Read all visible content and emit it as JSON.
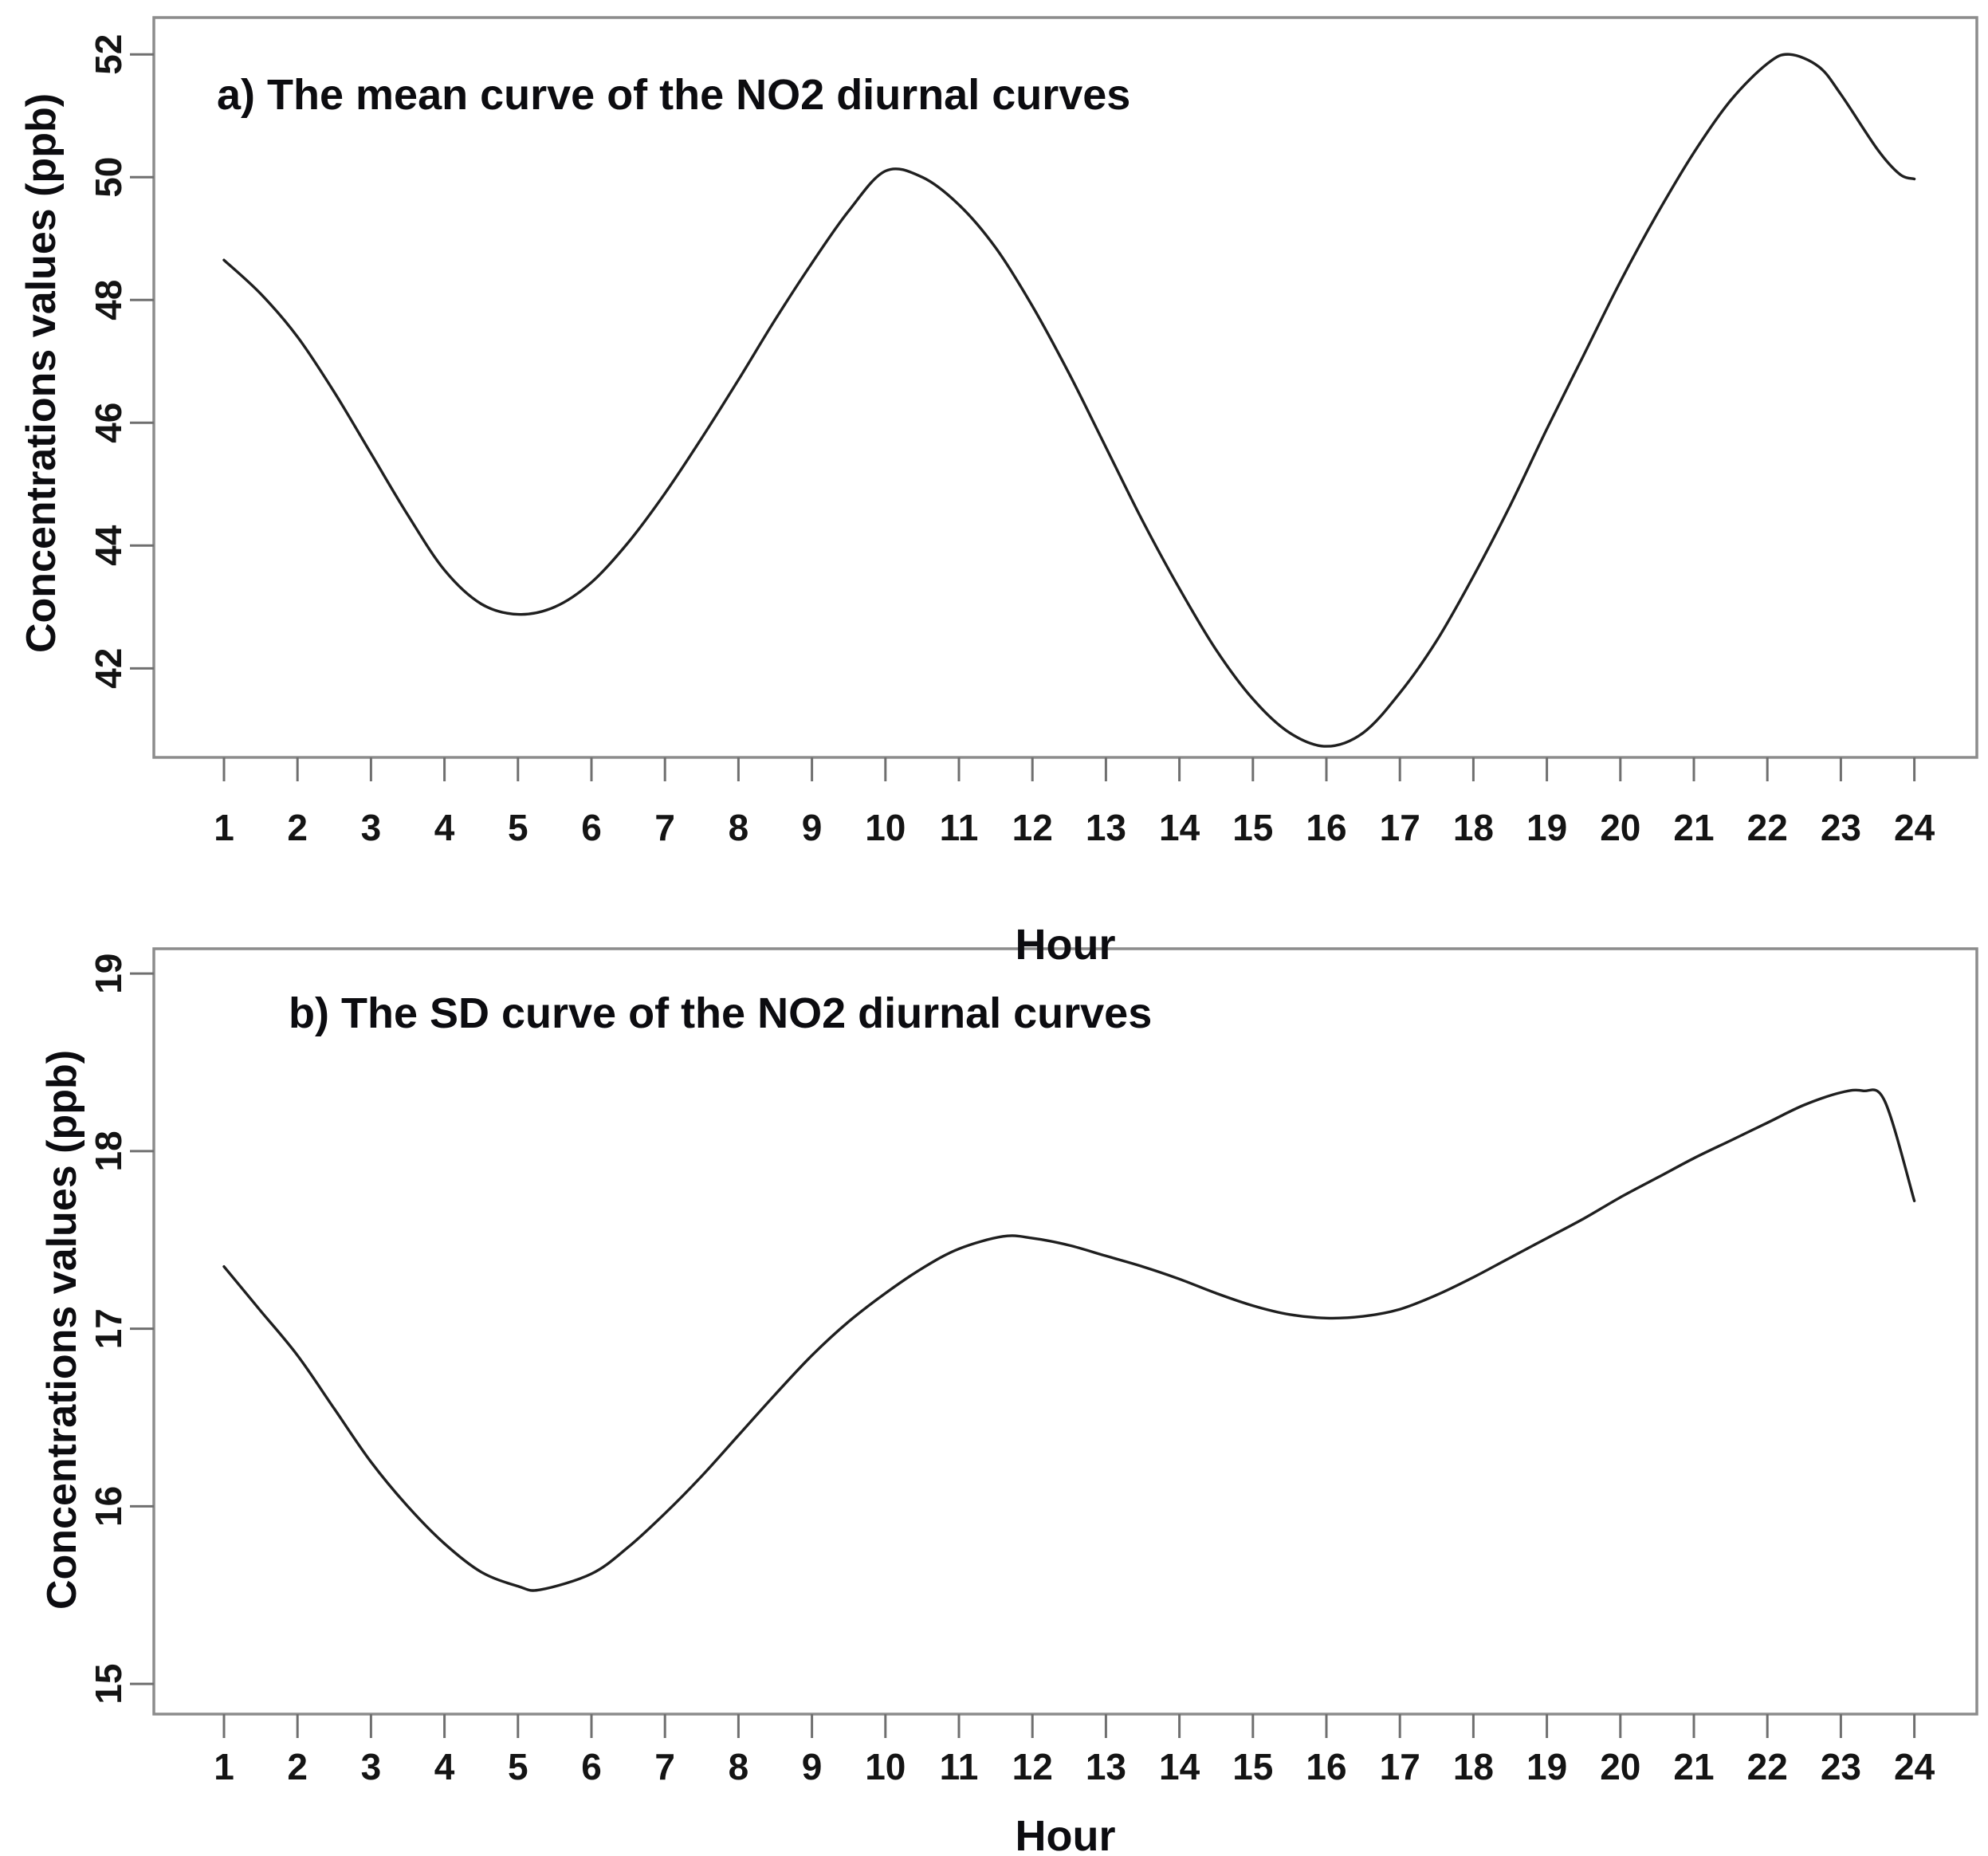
{
  "figure": {
    "background": "#ffffff",
    "frame_color": "#8c8c8c",
    "tick_color": "#6f6f6f",
    "text_color": "#141414",
    "curve_color": "#1f1f1f"
  },
  "chart_data": [
    {
      "type": "line",
      "panel": "a",
      "title": "a) The mean curve of the NO2 diurnal curves",
      "xlabel": "Hour",
      "ylabel": "Concentrations values (ppb)",
      "x_ticks": [
        1,
        2,
        3,
        4,
        5,
        6,
        7,
        8,
        9,
        10,
        11,
        12,
        13,
        14,
        15,
        16,
        17,
        18,
        19,
        20,
        21,
        22,
        23,
        24
      ],
      "y_ticks": [
        42,
        44,
        46,
        48,
        50,
        52
      ],
      "ylim": [
        40.55,
        52.6
      ],
      "xlim": [
        1,
        24
      ],
      "grid": false,
      "legend": null,
      "series": [
        {
          "name": "mean NO2 diurnal curve",
          "x": [
            1,
            1.5,
            2,
            2.5,
            3,
            3.5,
            4,
            4.5,
            5,
            5.5,
            6,
            6.5,
            7,
            7.5,
            8,
            8.5,
            9,
            9.5,
            10,
            10.5,
            11,
            11.5,
            12,
            12.5,
            13,
            13.5,
            14,
            14.5,
            15,
            15.5,
            16,
            16.5,
            17,
            17.5,
            18,
            18.5,
            19,
            19.5,
            20,
            20.5,
            21,
            21.5,
            22,
            22.3,
            22.7,
            23,
            23.5,
            23.8,
            24
          ],
          "y": [
            48.65,
            48.1,
            47.4,
            46.5,
            45.5,
            44.5,
            43.6,
            43.05,
            42.88,
            43.0,
            43.4,
            44.05,
            44.85,
            45.75,
            46.7,
            47.68,
            48.6,
            49.45,
            50.1,
            50.0,
            49.55,
            48.85,
            47.9,
            46.8,
            45.6,
            44.4,
            43.3,
            42.3,
            41.5,
            40.95,
            40.73,
            40.95,
            41.6,
            42.45,
            43.5,
            44.65,
            45.9,
            47.1,
            48.3,
            49.4,
            50.4,
            51.25,
            51.85,
            52.0,
            51.8,
            51.35,
            50.45,
            50.05,
            49.97
          ]
        }
      ],
      "key_points": {
        "start_h1": 48.65,
        "morning_min_h5": 42.9,
        "morning_peak_h10": 50.1,
        "afternoon_min_h16": 40.7,
        "evening_peak_h22": 52.0,
        "end_h24": 50.0
      }
    },
    {
      "type": "line",
      "panel": "b",
      "title": "b) The SD curve of the NO2 diurnal curves",
      "xlabel": "Hour",
      "ylabel": "Concentrations values (ppb)",
      "x_ticks": [
        1,
        2,
        3,
        4,
        5,
        6,
        7,
        8,
        9,
        10,
        11,
        12,
        13,
        14,
        15,
        16,
        17,
        18,
        19,
        20,
        21,
        22,
        23,
        24
      ],
      "y_ticks": [
        15,
        16,
        17,
        18,
        19
      ],
      "ylim": [
        14.83,
        19.14
      ],
      "xlim": [
        1,
        24
      ],
      "grid": false,
      "legend": null,
      "series": [
        {
          "name": "SD NO2 diurnal curve",
          "x": [
            1,
            1.5,
            2,
            2.5,
            3,
            3.5,
            4,
            4.5,
            5,
            5.3,
            6,
            6.5,
            7,
            7.5,
            8,
            8.5,
            9,
            9.5,
            10,
            10.5,
            11,
            11.6,
            12,
            12.5,
            13,
            13.5,
            14,
            14.5,
            15,
            15.5,
            16,
            16.5,
            17,
            17.5,
            18,
            18.5,
            19,
            19.5,
            20,
            20.5,
            21,
            21.5,
            22,
            22.5,
            23,
            23.3,
            23.6,
            24
          ],
          "y": [
            17.35,
            17.1,
            16.85,
            16.55,
            16.25,
            16.0,
            15.79,
            15.63,
            15.55,
            15.53,
            15.62,
            15.77,
            15.96,
            16.17,
            16.4,
            16.63,
            16.85,
            17.04,
            17.2,
            17.34,
            17.45,
            17.52,
            17.51,
            17.47,
            17.41,
            17.35,
            17.28,
            17.2,
            17.13,
            17.08,
            17.06,
            17.07,
            17.11,
            17.19,
            17.29,
            17.4,
            17.51,
            17.62,
            17.74,
            17.85,
            17.96,
            18.06,
            18.16,
            18.26,
            18.33,
            18.34,
            18.28,
            17.72
          ]
        }
      ],
      "key_points": {
        "start_h1": 17.35,
        "morning_min_h5": 15.53,
        "midday_max_h11_12": 17.52,
        "afternoon_min_h16": 17.06,
        "evening_peak_h23": 18.34,
        "end_h24": 17.7
      }
    }
  ]
}
